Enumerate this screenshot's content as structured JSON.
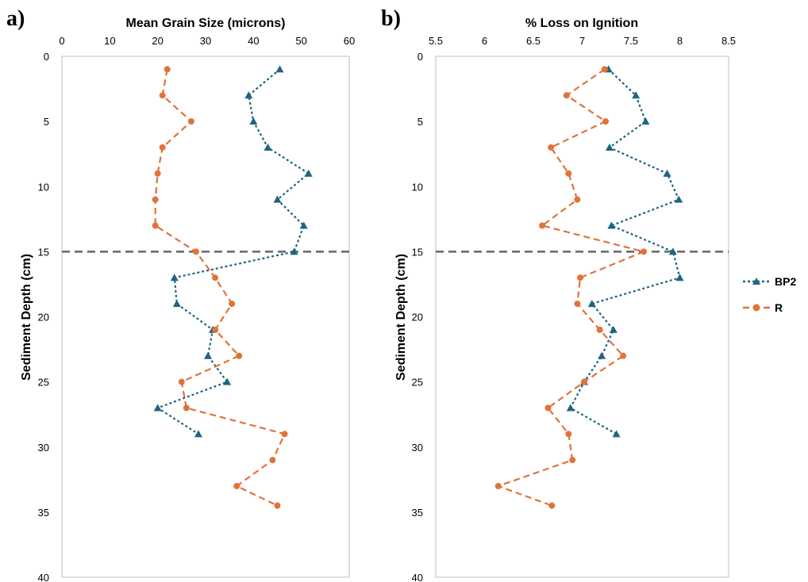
{
  "panel_labels": [
    "a)",
    "b)"
  ],
  "colors": {
    "BP2": "#1f6482",
    "R": "#e0733a",
    "reference_line": "#666666",
    "plot_border": "#bfbfbf"
  },
  "legend": {
    "placement": "right",
    "entries": [
      "BP2",
      "R"
    ]
  },
  "reference_line": {
    "depth": 15,
    "style": "dashed"
  },
  "chart_data": [
    {
      "type": "line",
      "panel": "a)",
      "title": "Mean Grain Size (microns)",
      "xlabel": "Mean Grain Size (microns)",
      "ylabel": "Sediment Depth (cm)",
      "xlim": [
        0,
        60
      ],
      "ylim": [
        0,
        40
      ],
      "y_inverted": true,
      "x_axis_position": "top",
      "x_ticks": [
        "0",
        "10",
        "20",
        "30",
        "40",
        "50",
        "60"
      ],
      "y_ticks": [
        "0",
        "5",
        "10",
        "15",
        "20",
        "25",
        "30",
        "35",
        "40"
      ],
      "grid": false,
      "series": [
        {
          "name": "BP2",
          "marker": "triangle",
          "line": "dotted",
          "x": [
            45.5,
            39,
            40,
            43,
            51.5,
            45,
            50.5,
            48.5,
            23.5,
            24,
            31.5,
            30.5,
            34.5,
            20,
            28.5
          ],
          "y": [
            1,
            3,
            5,
            7,
            9,
            11,
            13,
            15,
            17,
            19,
            21,
            23,
            25,
            27,
            29
          ]
        },
        {
          "name": "R",
          "marker": "circle",
          "line": "dashed",
          "x": [
            22,
            21,
            27,
            21,
            20,
            19.5,
            19.5,
            28,
            32,
            35.5,
            32,
            37,
            25,
            26,
            46.5,
            44,
            36.5,
            45
          ],
          "y": [
            1,
            3,
            5,
            7,
            9,
            11,
            13,
            15,
            17,
            19,
            21,
            23,
            25,
            27,
            29,
            31,
            33,
            34.5
          ]
        }
      ]
    },
    {
      "type": "line",
      "panel": "b)",
      "title": "% Loss on Ignition",
      "xlabel": "% Loss on Ignition",
      "ylabel": "Sediment Depth (cm)",
      "xlim": [
        5.5,
        8.5
      ],
      "ylim": [
        0,
        40
      ],
      "y_inverted": true,
      "x_axis_position": "top",
      "x_ticks": [
        "5.5",
        "6",
        "6.5",
        "7",
        "7.5",
        "8",
        "8.5"
      ],
      "y_ticks": [
        "0",
        "5",
        "10",
        "15",
        "20",
        "25",
        "30",
        "35",
        "40"
      ],
      "grid": false,
      "series": [
        {
          "name": "BP2",
          "marker": "triangle",
          "line": "dotted",
          "x": [
            7.27,
            7.55,
            7.65,
            7.28,
            7.87,
            7.99,
            7.3,
            7.93,
            8.0,
            7.1,
            7.32,
            7.2,
            7.02,
            6.88,
            7.35
          ],
          "y": [
            1,
            3,
            5,
            7,
            9,
            11,
            13,
            15,
            17,
            19,
            21,
            23,
            25,
            27,
            29
          ]
        },
        {
          "name": "R",
          "marker": "circle",
          "line": "dashed",
          "x": [
            7.23,
            6.84,
            7.24,
            6.68,
            6.86,
            6.95,
            6.59,
            7.63,
            6.98,
            6.95,
            7.18,
            7.42,
            7.02,
            6.65,
            6.86,
            6.9,
            6.14,
            6.69
          ],
          "y": [
            1,
            3,
            5,
            7,
            9,
            11,
            13,
            15,
            17,
            19,
            21,
            23,
            25,
            27,
            29,
            31,
            33,
            34.5
          ]
        }
      ]
    }
  ]
}
